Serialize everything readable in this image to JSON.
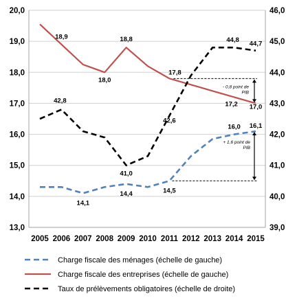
{
  "chart_data": {
    "type": "line",
    "x": [
      2005,
      2006,
      2007,
      2008,
      2009,
      2010,
      2011,
      2012,
      2013,
      2014,
      2015
    ],
    "y_left": {
      "min": 13.0,
      "max": 20.0,
      "step": 1.0
    },
    "y_right": {
      "min": 39.0,
      "max": 46.0,
      "step": 1.0
    },
    "grid": "horizontal",
    "legend_position": "bottom",
    "series": [
      {
        "name": "Charge fiscale des ménages (échelle de gauche)",
        "axis": "left",
        "color": "#4f81bd",
        "style": "dashed",
        "values": [
          14.3,
          14.3,
          14.1,
          14.3,
          14.4,
          14.3,
          14.5,
          15.3,
          15.85,
          16.0,
          16.1
        ]
      },
      {
        "name": "Charge fiscale des entreprises (échelle de gauche)",
        "axis": "left",
        "color": "#c0504d",
        "style": "solid",
        "values": [
          19.55,
          18.9,
          18.25,
          18.0,
          18.8,
          18.2,
          17.8,
          17.6,
          17.4,
          17.2,
          17.0
        ]
      },
      {
        "name": "Taux de prélèvements obligatoires (échelle de droite)",
        "axis": "right",
        "color": "#000000",
        "style": "dashed",
        "values": [
          42.5,
          42.8,
          42.1,
          41.9,
          41.0,
          41.3,
          42.6,
          43.9,
          44.8,
          44.8,
          44.7
        ]
      }
    ],
    "data_labels": [
      {
        "series": 1,
        "index": 1,
        "text": "18,9"
      },
      {
        "series": 1,
        "index": 3,
        "text": "18,0"
      },
      {
        "series": 1,
        "index": 4,
        "text": "18,8"
      },
      {
        "series": 1,
        "index": 6,
        "text": "17,8"
      },
      {
        "series": 1,
        "index": 9,
        "text": "17,2"
      },
      {
        "series": 1,
        "index": 10,
        "text": "17,0"
      },
      {
        "series": 2,
        "index": 1,
        "text": "42,8"
      },
      {
        "series": 2,
        "index": 4,
        "text": "41,0"
      },
      {
        "series": 2,
        "index": 6,
        "text": "42,6"
      },
      {
        "series": 2,
        "index": 9,
        "text": "44,8"
      },
      {
        "series": 2,
        "index": 10,
        "text": "44,7"
      },
      {
        "series": 0,
        "index": 2,
        "text": "14,1"
      },
      {
        "series": 0,
        "index": 4,
        "text": "14,4"
      },
      {
        "series": 0,
        "index": 6,
        "text": "14,5"
      },
      {
        "series": 0,
        "index": 9,
        "text": "16,0"
      },
      {
        "series": 0,
        "index": 10,
        "text": "16,1"
      }
    ],
    "annotations": [
      {
        "text_lines": [
          "- 0,8 point de",
          "PIB"
        ],
        "from": 17.8,
        "to": 17.0
      },
      {
        "text_lines": [
          "+ 1,6 point de",
          "PIB"
        ],
        "from": 14.5,
        "to": 16.1
      }
    ]
  }
}
